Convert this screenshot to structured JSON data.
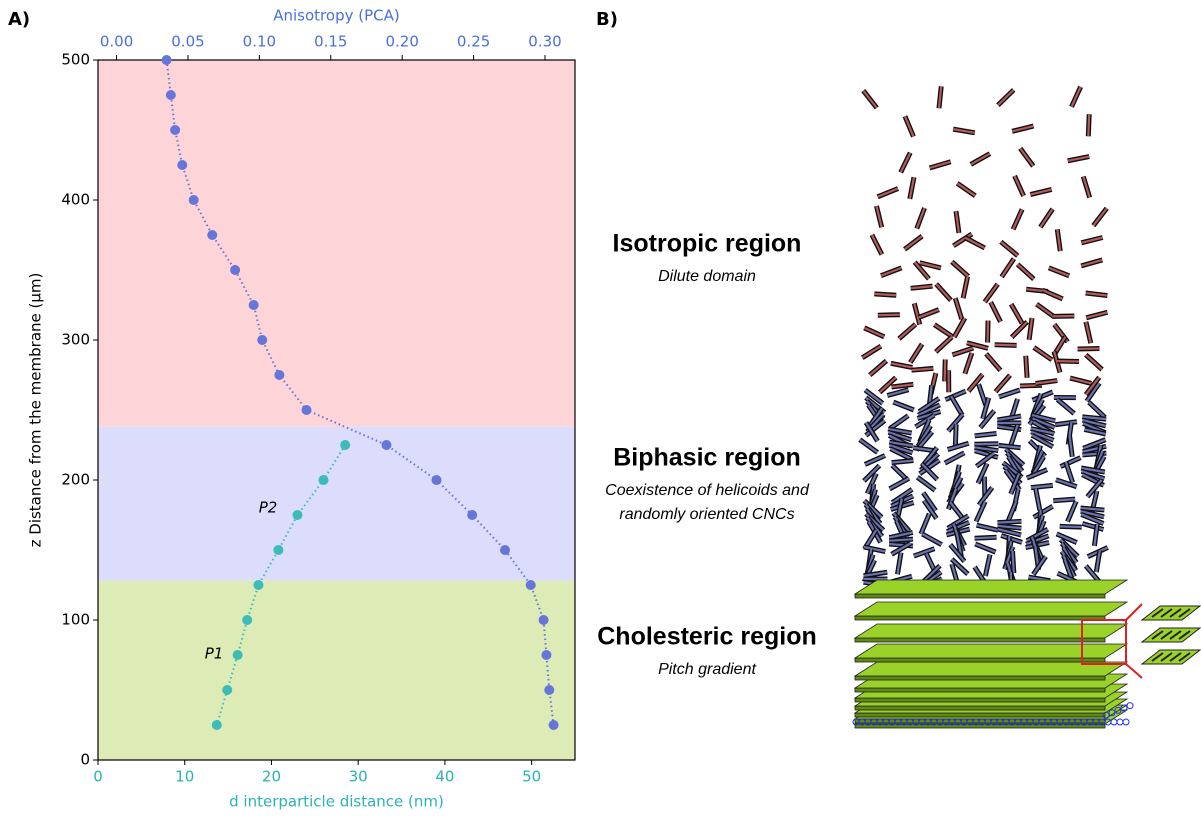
{
  "panels": {
    "a": "A)",
    "b": "B)"
  },
  "chart_data": {
    "type": "scatter",
    "ylabel": "z Distance from the membrane (µm)",
    "xlabel": "d interparticle distance (nm)",
    "x2label": "Anisotropy (PCA)",
    "ylim": [
      0,
      500
    ],
    "yticks": [
      0,
      100,
      200,
      300,
      400,
      500
    ],
    "xlim": [
      0,
      55
    ],
    "xticks": [
      0,
      10,
      20,
      30,
      40,
      50
    ],
    "x2lim": [
      -0.013,
      0.321
    ],
    "x2ticks": [
      {
        "value": 0,
        "label": "0.00"
      },
      0.05,
      {
        "value": 0.1,
        "label": "0.10"
      },
      0.15,
      {
        "value": 0.2,
        "label": "0.20"
      },
      0.25,
      {
        "value": 0.3,
        "label": "0.30"
      }
    ],
    "bands": [
      {
        "from": 238,
        "to": 500,
        "color": "#fdd5d8"
      },
      {
        "from": 128,
        "to": 238,
        "color": "#dcdcfc"
      },
      {
        "from": 0,
        "to": 128,
        "color": "#ddebb6"
      }
    ],
    "y": [
      500,
      475,
      450,
      425,
      400,
      375,
      350,
      325,
      300,
      275,
      250,
      225,
      200,
      175,
      150,
      125,
      100,
      75,
      50,
      25
    ],
    "series": [
      {
        "axis": "x2",
        "color": "#6675d8",
        "values": [
          0.035,
          0.038,
          0.041,
          0.046,
          0.054,
          0.067,
          0.083,
          0.096,
          0.102,
          0.114,
          0.133,
          0.189,
          0.224,
          0.249,
          0.272,
          0.29,
          0.299,
          0.301,
          0.303,
          0.306
        ]
      },
      {
        "axis": "x",
        "color": "#3cbcb8",
        "values": [
          null,
          null,
          null,
          null,
          null,
          null,
          null,
          null,
          null,
          null,
          null,
          28.5,
          26.0,
          23.0,
          20.8,
          18.5,
          17.2,
          16.1,
          14.9,
          13.7
        ]
      }
    ],
    "annotations": [
      "P2",
      "P1"
    ]
  },
  "diagram": {
    "regions": [
      {
        "title": "Isotropic region",
        "lines": [
          "Dilute domain"
        ],
        "color": "#f28a8f"
      },
      {
        "title": "Biphasic region",
        "lines": [
          "Coexistence of helicoids and",
          "randomly oriented CNCs"
        ],
        "color": "#a3a3ef"
      },
      {
        "title": "Cholesteric region",
        "lines": [
          "Pitch gradient"
        ],
        "color": "#99c91a"
      }
    ]
  }
}
